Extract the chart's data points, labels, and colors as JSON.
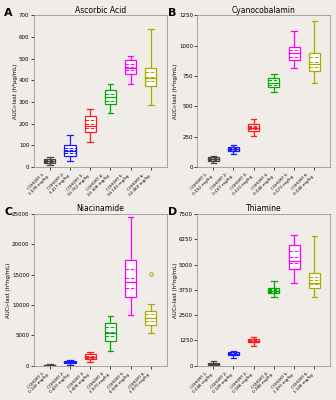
{
  "panels": [
    {
      "label": "A",
      "title": "Ascorbic Acid",
      "ylabel": "AUC₀-last (h*µg/mL)",
      "ylim": [
        0,
        700
      ],
      "yticks": [
        0,
        100,
        200,
        300,
        400,
        500,
        600,
        700
      ],
      "colors": [
        "#444444",
        "#1a1aff",
        "#ff1a1a",
        "#00aa00",
        "#ff00ff",
        "#aaaa00"
      ],
      "boxes": [
        {
          "whislo": 8,
          "q1": 18,
          "med": 27,
          "q3": 35,
          "whishi": 44,
          "mean": 27,
          "fliers": []
        },
        {
          "whislo": 25,
          "q1": 52,
          "med": 73,
          "q3": 100,
          "whishi": 145,
          "mean": 73,
          "fliers": []
        },
        {
          "whislo": 115,
          "q1": 160,
          "med": 190,
          "q3": 235,
          "whishi": 268,
          "mean": 190,
          "fliers": []
        },
        {
          "whislo": 248,
          "q1": 290,
          "med": 323,
          "q3": 355,
          "whishi": 383,
          "mean": 323,
          "fliers": []
        },
        {
          "whislo": 385,
          "q1": 430,
          "med": 458,
          "q3": 492,
          "whishi": 512,
          "mean": 458,
          "fliers": []
        },
        {
          "whislo": 285,
          "q1": 375,
          "med": 412,
          "q3": 458,
          "whishi": 635,
          "mean": 412,
          "fliers": []
        }
      ],
      "xlabels": [
        "COHORT 1:\n1.078 mg/kg",
        "COHORT 2:\n3.417 mg/kg",
        "COHORT 3:\n10.762 mg/kg",
        "COHORT 4:\n22.306 mg/kg",
        "COHORT 5:\n34.130 mg/kg",
        "COHORT 6:\n22.460 mg/kg"
      ]
    },
    {
      "label": "B",
      "title": "Cyanocobalamin",
      "ylabel": "AUC₀-last (h*ng/mL)",
      "ylim": [
        0,
        1250
      ],
      "yticks": [
        0,
        250,
        500,
        750,
        1000,
        1250
      ],
      "colors": [
        "#444444",
        "#1a1aff",
        "#ff1a1a",
        "#00aa00",
        "#ff00ff",
        "#aaaa00"
      ],
      "boxes": [
        {
          "whislo": 35,
          "q1": 52,
          "med": 65,
          "q3": 80,
          "whishi": 92,
          "mean": 65,
          "fliers": []
        },
        {
          "whislo": 105,
          "q1": 133,
          "med": 148,
          "q3": 163,
          "whishi": 178,
          "mean": 148,
          "fliers": []
        },
        {
          "whislo": 258,
          "q1": 298,
          "med": 323,
          "q3": 353,
          "whishi": 393,
          "mean": 323,
          "fliers": []
        },
        {
          "whislo": 618,
          "q1": 660,
          "med": 693,
          "q3": 730,
          "whishi": 762,
          "mean": 693,
          "fliers": []
        },
        {
          "whislo": 815,
          "q1": 882,
          "med": 938,
          "q3": 992,
          "whishi": 1118,
          "mean": 938,
          "fliers": []
        },
        {
          "whislo": 688,
          "q1": 788,
          "med": 852,
          "q3": 942,
          "whishi": 1202,
          "mean": 852,
          "fliers": []
        }
      ],
      "xlabels": [
        "COHORT 1:\n0.052 mg/kg",
        "COHORT 2:\n0.067 mg/kg",
        "COHORT 3:\n0.023 mg/kg",
        "COHORT 4:\n0.048 mg/kg",
        "COHORT 5:\n0.073 mg/kg",
        "COHORT 6:\n0.048 mg/kg"
      ]
    },
    {
      "label": "C",
      "title": "Niacinamide",
      "ylabel": "AUC₀-last (h*ng/mL)",
      "ylim": [
        0,
        25000
      ],
      "yticks": [
        0,
        5000,
        10000,
        15000,
        20000,
        25000
      ],
      "colors": [
        "#444444",
        "#1a1aff",
        "#ff1a1a",
        "#00aa00",
        "#ff00ff",
        "#aaaa00"
      ],
      "boxes": [
        {
          "whislo": 0,
          "q1": 25,
          "med": 55,
          "q3": 115,
          "whishi": 205,
          "mean": 55,
          "fliers": []
        },
        {
          "whislo": 190,
          "q1": 380,
          "med": 540,
          "q3": 700,
          "whishi": 910,
          "mean": 540,
          "fliers": []
        },
        {
          "whislo": 680,
          "q1": 1080,
          "med": 1480,
          "q3": 1880,
          "whishi": 2220,
          "mean": 1480,
          "fliers": []
        },
        {
          "whislo": 2450,
          "q1": 4100,
          "med": 5400,
          "q3": 7100,
          "whishi": 8250,
          "mean": 5400,
          "fliers": []
        },
        {
          "whislo": 8400,
          "q1": 11400,
          "med": 13800,
          "q3": 17400,
          "whishi": 24600,
          "mean": 13800,
          "fliers": []
        },
        {
          "whislo": 5400,
          "q1": 6800,
          "med": 7900,
          "q3": 9100,
          "whishi": 10100,
          "mean": 7900,
          "fliers": [
            15200
          ]
        }
      ],
      "xlabels": [
        "COHORT 1:\n0.140 mg/kg",
        "COHORT 2:\n0.401 mg/kg",
        "COHORT 3:\n1.406 mg/kg",
        "COHORT 4:\n2.970 mg/kg",
        "COHORT 5:\n4.506 mg/kg",
        "COHORT 6:\n2.970 mg/kg"
      ]
    },
    {
      "label": "D",
      "title": "Thiamine",
      "ylabel": "AUC₀-last (h*ng/mL)",
      "ylim": [
        0,
        7500
      ],
      "yticks": [
        0,
        1250,
        2500,
        3750,
        5000,
        6250,
        7500
      ],
      "colors": [
        "#444444",
        "#1a1aff",
        "#ff1a1a",
        "#00aa00",
        "#ff00ff",
        "#aaaa00"
      ],
      "boxes": [
        {
          "whislo": 20,
          "q1": 55,
          "med": 95,
          "q3": 155,
          "whishi": 215,
          "mean": 95,
          "fliers": []
        },
        {
          "whislo": 380,
          "q1": 520,
          "med": 600,
          "q3": 670,
          "whishi": 730,
          "mean": 600,
          "fliers": []
        },
        {
          "whislo": 1000,
          "q1": 1150,
          "med": 1230,
          "q3": 1320,
          "whishi": 1430,
          "mean": 1230,
          "fliers": []
        },
        {
          "whislo": 3400,
          "q1": 3600,
          "med": 3720,
          "q3": 3870,
          "whishi": 4200,
          "mean": 3720,
          "fliers": []
        },
        {
          "whislo": 4100,
          "q1": 4800,
          "med": 5200,
          "q3": 5950,
          "whishi": 6450,
          "mean": 5200,
          "fliers": []
        },
        {
          "whislo": 3400,
          "q1": 3850,
          "med": 4100,
          "q3": 4600,
          "whishi": 6400,
          "mean": 4100,
          "fliers": []
        }
      ],
      "xlabels": [
        "COHORT 1:\n0.048 mg/kg",
        "COHORT 2:\n0.149 mg/kg",
        "COHORT 3:\n0.188 mg/kg",
        "COHORT 4:\n0.388 mg/kg",
        "COHORT 5:\n1.491 mg/kg",
        "COHORT 6:\n1.148 mg/kg"
      ]
    }
  ],
  "bg_color": "#f0ede8",
  "box_width": 0.55,
  "linewidth": 0.9
}
